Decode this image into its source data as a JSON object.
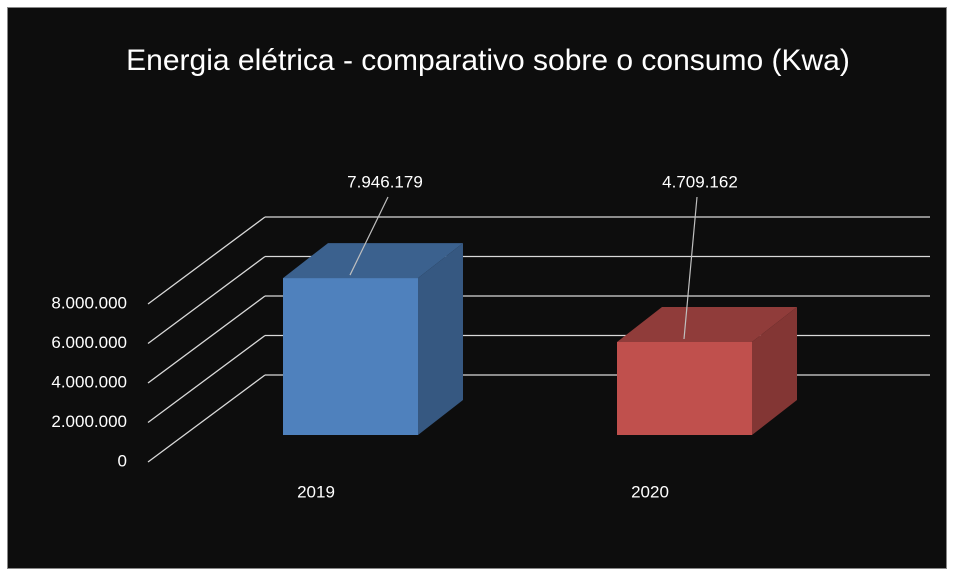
{
  "chart_data": {
    "type": "bar3d",
    "title": "Energia elétrica - comparativo sobre o consumo (Kwa)",
    "categories": [
      "2019",
      "2020"
    ],
    "values": [
      7946179,
      4709162
    ],
    "value_labels": [
      "7.946.179",
      "4.709.162"
    ],
    "colors": [
      "#4f81bd",
      "#c0504d"
    ],
    "ylim": [
      0,
      8000000
    ],
    "yticks": [
      0,
      {
        "value": 2000000,
        "label": "2.000.000"
      },
      {
        "value": 4000000,
        "label": "4.000.000"
      },
      {
        "value": 6000000,
        "label": "6.000.000"
      },
      {
        "value": 8000000,
        "label": "8.000.000"
      }
    ],
    "grid": true
  }
}
